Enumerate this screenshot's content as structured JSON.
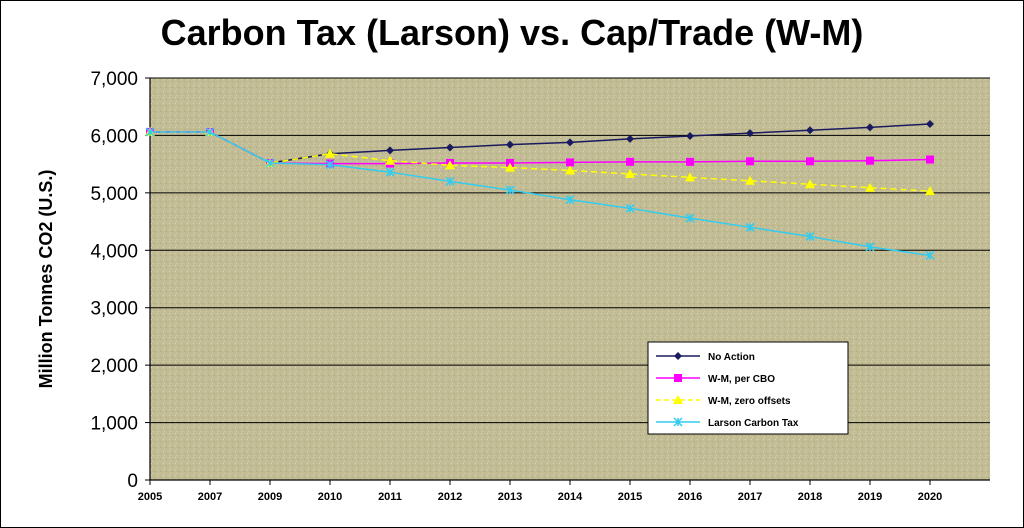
{
  "chart_data": {
    "type": "line",
    "title": "Carbon Tax (Larson) vs. Cap/Trade (W-M)",
    "ylabel": "Million Tonnes CO2 (U.S.)",
    "xlabel": "",
    "ylim": [
      0,
      7000
    ],
    "grid": true,
    "legend_position": "bottom-right",
    "x": [
      "2005",
      "2007",
      "2009",
      "2010",
      "2011",
      "2012",
      "2013",
      "2014",
      "2015",
      "2016",
      "2017",
      "2018",
      "2019",
      "2020"
    ],
    "yticks": [
      "0",
      "1,000",
      "2,000",
      "3,000",
      "4,000",
      "5,000",
      "6,000",
      "7,000"
    ],
    "series": [
      {
        "name": "No Action",
        "color": "#1a1a5e",
        "marker": "diamond",
        "dash": false,
        "values": [
          6060,
          6060,
          5520,
          5680,
          5740,
          5790,
          5840,
          5880,
          5940,
          5990,
          6040,
          6090,
          6140,
          6200
        ]
      },
      {
        "name": "W-M, per CBO",
        "color": "#ff00ff",
        "marker": "square",
        "dash": false,
        "values": [
          6060,
          6060,
          5520,
          5510,
          5510,
          5520,
          5520,
          5530,
          5540,
          5540,
          5550,
          5550,
          5560,
          5580
        ]
      },
      {
        "name": "W-M, zero offsets",
        "color": "#ffff00",
        "marker": "triangle",
        "dash": true,
        "values": [
          6060,
          6060,
          5520,
          5680,
          5560,
          5480,
          5440,
          5390,
          5330,
          5270,
          5210,
          5150,
          5090,
          5030
        ]
      },
      {
        "name": "Larson Carbon Tax",
        "color": "#33ccee",
        "marker": "x",
        "dash": false,
        "values": [
          6060,
          6060,
          5520,
          5490,
          5360,
          5200,
          5050,
          4880,
          4730,
          4560,
          4400,
          4240,
          4060,
          3910
        ]
      }
    ]
  }
}
